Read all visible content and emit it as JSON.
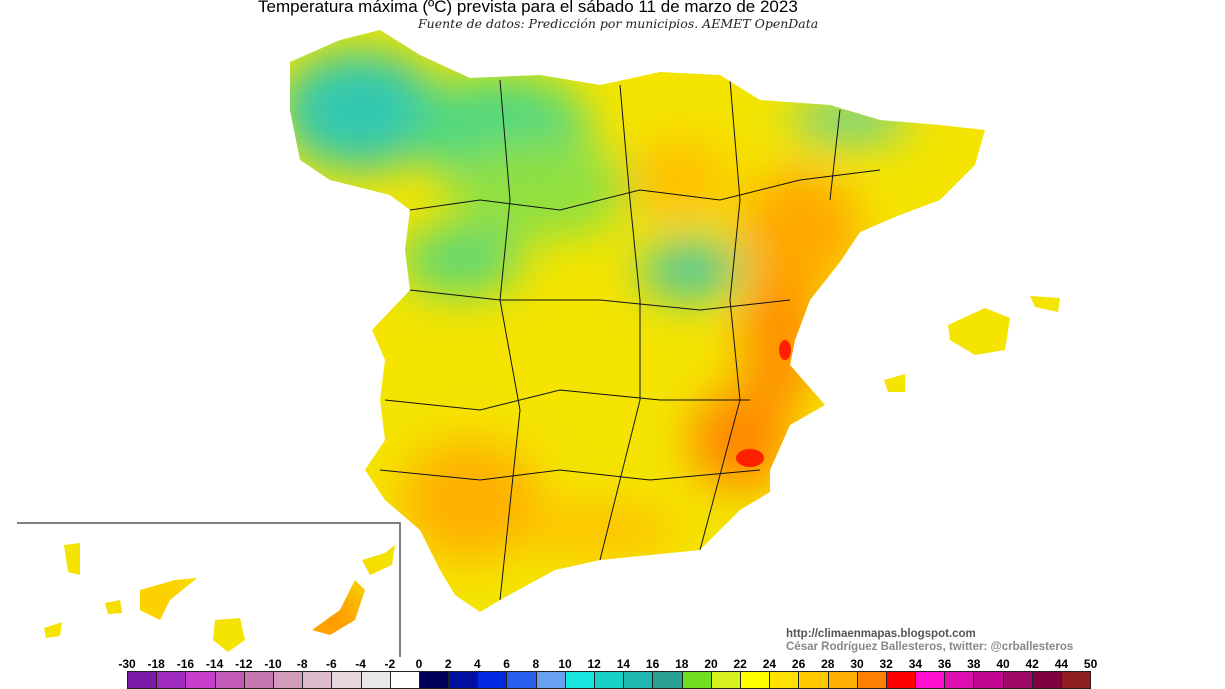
{
  "title": "Temperatura máxima (ºC) prevista para el sábado 11 de marzo de 2023",
  "subtitle": "Fuente de datos: Predicción por municipios. AEMET OpenData",
  "credits": {
    "url": "http://climaenmapas.blogspot.com",
    "author": "César Rodríguez Ballesteros, twitter: @crballesteros"
  },
  "legend": {
    "unit": "ºC",
    "labels": [
      "-30",
      "-18",
      "-16",
      "-14",
      "-12",
      "-10",
      "-8",
      "-6",
      "-4",
      "-2",
      "0",
      "2",
      "4",
      "6",
      "8",
      "10",
      "12",
      "14",
      "16",
      "18",
      "20",
      "22",
      "24",
      "26",
      "28",
      "30",
      "32",
      "34",
      "36",
      "38",
      "40",
      "42",
      "44",
      "50"
    ],
    "colors": [
      "#7a1ca8",
      "#a22cc0",
      "#c83ecc",
      "#c45ab8",
      "#c878b0",
      "#d49cbc",
      "#dcbccc",
      "#e6d6de",
      "#e8e8ea",
      "#ffffff",
      "#00005a",
      "#0010a0",
      "#0028e0",
      "#2860f0",
      "#6aa0f0",
      "#18e8e0",
      "#18d0c8",
      "#20b8b0",
      "#2aa090",
      "#70e020",
      "#d8f020",
      "#ffff00",
      "#ffe000",
      "#ffc800",
      "#ffb000",
      "#ff8000",
      "#ff0000",
      "#ff10d0",
      "#e010b0",
      "#c00890",
      "#a00868",
      "#800040",
      "#902020"
    ]
  }
}
